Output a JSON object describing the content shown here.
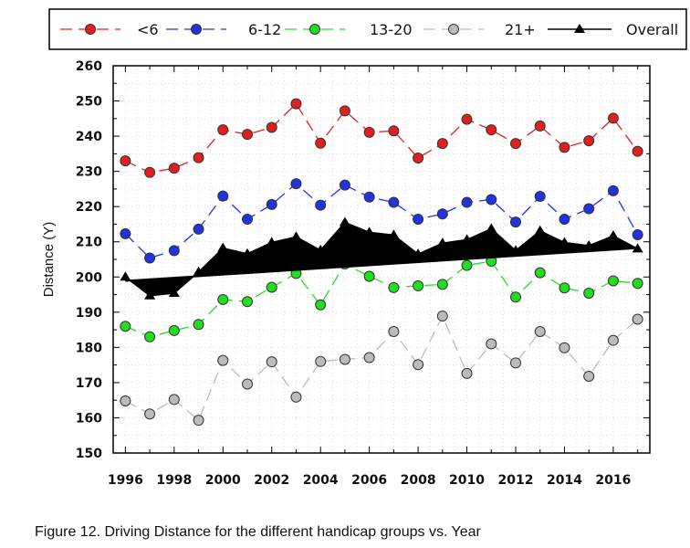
{
  "caption": "Figure 12. Driving Distance for the different handicap groups vs. Year",
  "chart_data": {
    "type": "line",
    "title": "",
    "xlabel": "",
    "ylabel": "Distance (Y)",
    "xlim": [
      1995.5,
      2017.5
    ],
    "ylim": [
      150,
      260
    ],
    "x_ticks": [
      1996,
      1998,
      2000,
      2002,
      2004,
      2006,
      2008,
      2010,
      2012,
      2014,
      2016
    ],
    "y_ticks": [
      150,
      160,
      170,
      180,
      190,
      200,
      210,
      220,
      230,
      240,
      250,
      260
    ],
    "grid": true,
    "legend_position": "top",
    "x": [
      1996,
      1997,
      1998,
      1999,
      2000,
      2001,
      2002,
      2003,
      2004,
      2005,
      2006,
      2007,
      2008,
      2009,
      2010,
      2011,
      2012,
      2013,
      2014,
      2015,
      2016,
      2017
    ],
    "series": [
      {
        "name": "<6",
        "color": "#e02020",
        "marker": "circle",
        "line": "dashed",
        "values": [
          233,
          229.7,
          230.9,
          233.9,
          241.8,
          240.5,
          242.5,
          249.2,
          238.0,
          247.2,
          241.1,
          241.5,
          233.8,
          237.9,
          244.8,
          241.8,
          237.9,
          242.9,
          236.8,
          238.7,
          245.1,
          235.7
        ]
      },
      {
        "name": "6-12",
        "color": "#2233dd",
        "marker": "circle",
        "line": "dashed",
        "values": [
          212.3,
          205.4,
          207.5,
          213.6,
          223.0,
          216.4,
          220.6,
          226.5,
          220.4,
          226.1,
          222.7,
          221.2,
          216.4,
          217.9,
          221.2,
          222.0,
          215.6,
          222.9,
          216.4,
          219.4,
          224.5,
          212.0
        ]
      },
      {
        "name": "13-20",
        "color": "#22dd22",
        "marker": "circle",
        "line": "dashed",
        "values": [
          186.0,
          183.0,
          184.8,
          186.5,
          193.6,
          193.0,
          197.1,
          201.0,
          192.1,
          203.7,
          200.2,
          197.0,
          197.5,
          197.9,
          203.3,
          204.5,
          194.3,
          201.2,
          196.9,
          195.4,
          198.9,
          198.2
        ]
      },
      {
        "name": "21+",
        "color": "#bbbbbb",
        "marker": "circle",
        "line": "dashed",
        "values": [
          164.8,
          161.1,
          165.2,
          159.3,
          176.3,
          169.6,
          175.9,
          165.9,
          176.0,
          176.6,
          177.1,
          184.5,
          175.1,
          188.9,
          172.6,
          181.0,
          175.6,
          184.5,
          179.9,
          171.8,
          182.0,
          188.0
        ]
      },
      {
        "name": "Overall",
        "color": "#000000",
        "marker": "triangle",
        "line": "solid",
        "values": [
          200.0,
          194.7,
          195.4,
          201.4,
          208.2,
          206.6,
          209.8,
          211.4,
          207.6,
          215.5,
          212.7,
          211.9,
          206.5,
          209.6,
          210.6,
          213.7,
          207.5,
          213.1,
          209.8,
          208.9,
          211.7,
          208.0
        ],
        "trend": [
          198.9,
          208.2
        ]
      }
    ]
  }
}
